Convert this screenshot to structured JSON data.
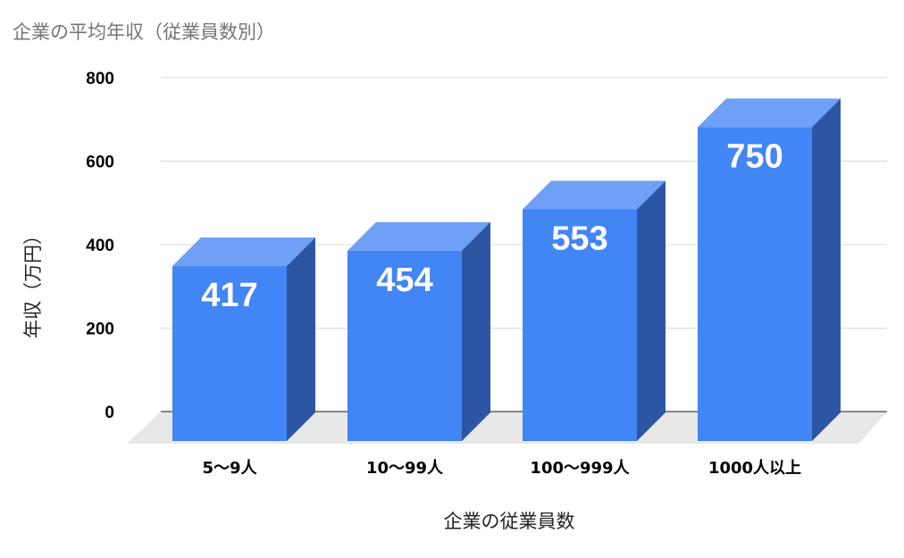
{
  "chart_data": {
    "type": "bar",
    "title": "企業の平均年収（従業員数別）",
    "xlabel": "企業の従業員数",
    "ylabel": "年収（万円）",
    "categories": [
      "5〜9人",
      "10〜99人",
      "100〜999人",
      "1000人以上"
    ],
    "values": [
      417,
      454,
      553,
      750
    ],
    "ylim": [
      0,
      800
    ],
    "yticks": [
      0,
      200,
      400,
      600,
      800
    ],
    "grid": true,
    "legend": "none",
    "style": "3d"
  },
  "colors": {
    "bar_front": "#4285f4",
    "bar_top": "#6ea0f6",
    "bar_side": "#2c56a3",
    "floor": "#e8e8e8",
    "grid": "#d9d9d9"
  }
}
